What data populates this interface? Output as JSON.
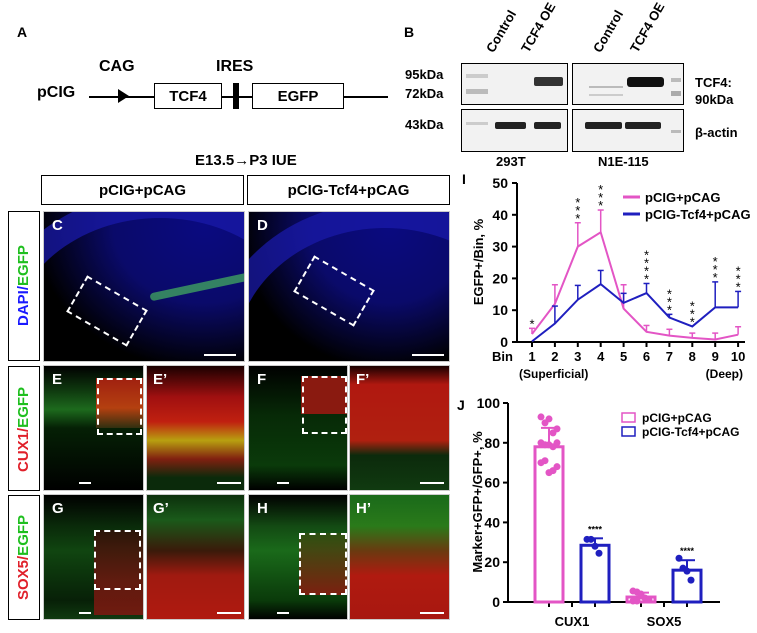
{
  "panelA": {
    "letter": "A",
    "vector_name": "pCIG",
    "promoter_label": "CAG",
    "ires_label": "IRES",
    "gene1": "TCF4",
    "gene2": "EGFP"
  },
  "panelB": {
    "letter": "B",
    "lanes": [
      "Control",
      "TCF4 OE",
      "Control",
      "TCF4 OE"
    ],
    "markers": [
      "95kDa",
      "72kDa",
      "43kDa"
    ],
    "right_labels": {
      "tcf4_line1": "TCF4:",
      "tcf4_line2": "90kDa",
      "actin": "β-actin"
    },
    "cell_lines": [
      "293T",
      "N1E-115"
    ]
  },
  "micrographs": {
    "title": "E13.5→P3 IUE",
    "col_headers": [
      "pCIG+pCAG",
      "pCIG-Tcf4+pCAG"
    ],
    "row_labels": [
      {
        "part1": "DAPI/",
        "part2": "EGFP",
        "color1": "#1a1aff",
        "color2": "#1fbf1f"
      },
      {
        "part1": "CUX1/",
        "part2": "EGFP",
        "color1": "#e0202a",
        "color2": "#1fbf1f"
      },
      {
        "part1": "SOX5/",
        "part2": "EGFP",
        "color1": "#e0202a",
        "color2": "#1fbf1f"
      }
    ],
    "panel_letters": [
      "C",
      "D",
      "E",
      "E’",
      "F",
      "F’",
      "G",
      "G’",
      "H",
      "H’"
    ]
  },
  "chart_data": [
    {
      "panel": "I",
      "type": "line",
      "title": "",
      "xlabel": "Bin",
      "ylabel": "EGFP+/Bin, %",
      "categories": [
        "1",
        "2",
        "3",
        "4",
        "5",
        "6",
        "7",
        "8",
        "9",
        "10"
      ],
      "x_annotations": {
        "left": "(Superficial)",
        "right": "(Deep)"
      },
      "ylim": [
        0,
        50
      ],
      "yticks": [
        0,
        10,
        20,
        30,
        40,
        50
      ],
      "grid": false,
      "legend_position": "upper right",
      "series": [
        {
          "name": "pCIG+pCAG",
          "color": "#e355c5",
          "values": [
            2.5,
            12,
            30,
            34.5,
            10.5,
            3.2,
            2.0,
            1.3,
            0.8,
            2.3
          ],
          "error": [
            1.8,
            6,
            7.5,
            7,
            7.5,
            2,
            2,
            1.5,
            2,
            2.5
          ]
        },
        {
          "name": "pCIG-Tcf4+pCAG",
          "color": "#1f1fbf",
          "values": [
            0.2,
            5.8,
            13.3,
            18.2,
            12.3,
            15.4,
            7.7,
            4.9,
            10.9,
            10.9
          ],
          "error": [
            0,
            5.5,
            4.5,
            4.3,
            3,
            3,
            1,
            0,
            8,
            5
          ]
        }
      ],
      "significance": [
        "*",
        "",
        "***",
        "***",
        "",
        "****",
        "***",
        "***",
        "***",
        "***"
      ]
    },
    {
      "panel": "J",
      "type": "bar",
      "title": "",
      "xlabel": "",
      "ylabel": "Marker+GFP+/GFP+, %",
      "categories": [
        "CUX1",
        "SOX5"
      ],
      "ylim": [
        0,
        100
      ],
      "yticks": [
        0,
        20,
        40,
        60,
        80,
        100
      ],
      "grid": false,
      "legend_position": "upper right",
      "series": [
        {
          "name": "pCIG+pCAG",
          "color": "#e355c5",
          "values": [
            78,
            2.5
          ],
          "error": [
            9.5,
            2.2
          ],
          "points": [
            [
              93,
              90,
              92,
              85,
              87,
              80,
              79,
              79,
              78,
              80,
              70,
              71,
              65,
              66,
              68
            ],
            [
              5.5,
              5,
              3,
              2,
              1,
              0.5,
              0.5,
              4
            ]
          ]
        },
        {
          "name": "pCIG-Tcf4+pCAG",
          "color": "#1f1fbf",
          "values": [
            28.5,
            16
          ],
          "error": [
            3.5,
            5
          ],
          "points": [
            [
              31.5,
              31.5,
              28,
              24.5
            ],
            [
              22,
              17,
              15.5,
              11
            ]
          ]
        }
      ],
      "significance": [
        "****",
        "****"
      ]
    }
  ]
}
